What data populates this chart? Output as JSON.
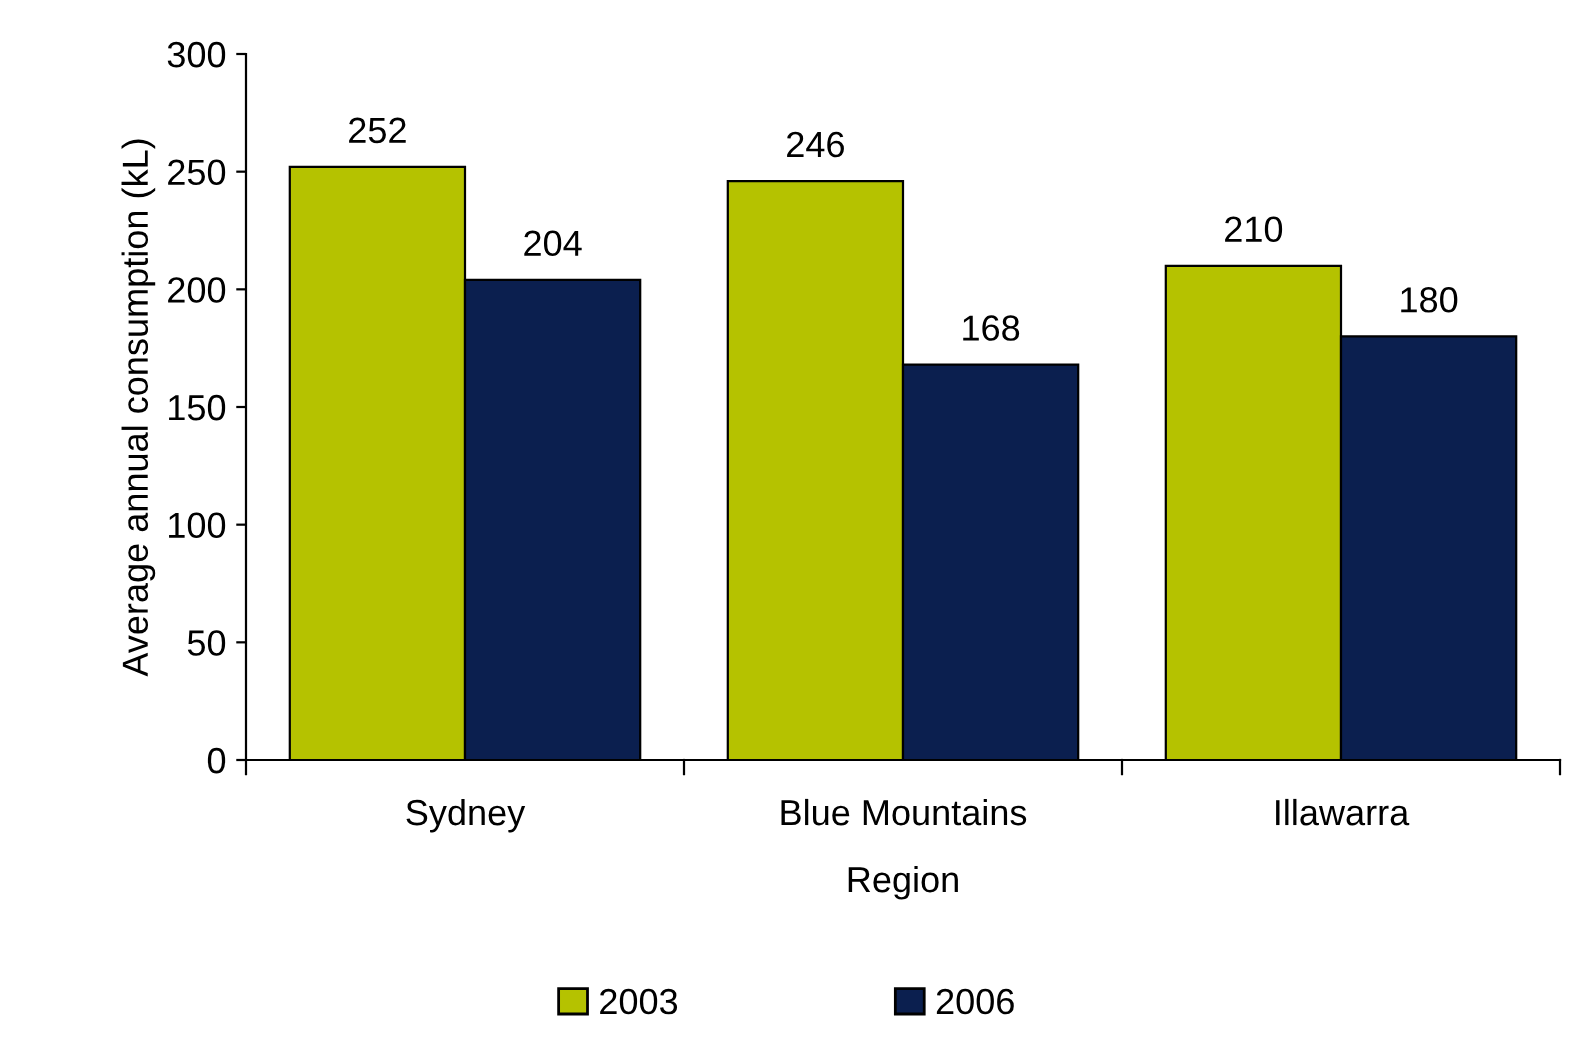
{
  "chart_data": {
    "type": "bar",
    "xlabel": "Region",
    "ylabel": "Average annual consumption (kL)",
    "categories": [
      "Sydney",
      "Blue Mountains",
      "Illawarra"
    ],
    "series": [
      {
        "name": "2003",
        "color": "#b5c200",
        "values": [
          252,
          246,
          210
        ]
      },
      {
        "name": "2006",
        "color": "#0b1f4f",
        "values": [
          204,
          168,
          180
        ]
      }
    ],
    "ylim": [
      0,
      300
    ],
    "yticks": [
      0,
      50,
      100,
      150,
      200,
      250,
      300
    ],
    "data_labels": true,
    "grid": false,
    "legend": "bottom"
  }
}
